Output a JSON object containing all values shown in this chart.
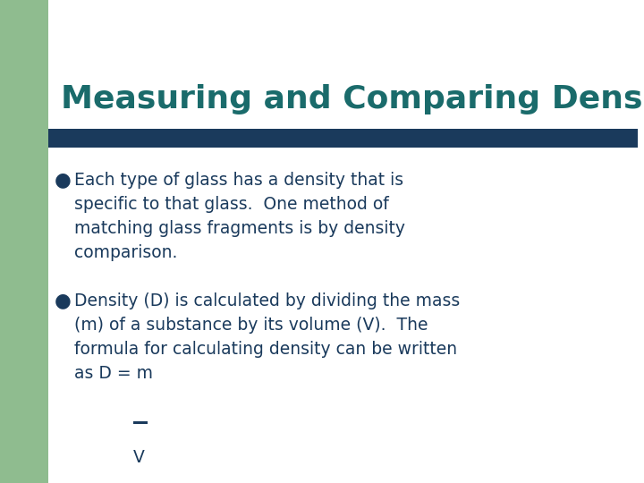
{
  "title": "Measuring and Comparing Density",
  "title_color": "#1a6b6b",
  "title_fontsize": 26,
  "bg_color": "#ffffff",
  "green_color": "#8fbc8f",
  "divider_color": "#1a3a5c",
  "text_color": "#1a3a5c",
  "bullet_fontsize": 13.5,
  "bullet1": "Each type of glass has a density that is\nspecific to that glass.  One method of\nmatching glass fragments is by density\ncomparison.",
  "bullet2": "Density (D) is calculated by dividing the mass\n(m) of a substance by its volume (V).  The\nformula for calculating density can be written\nas D = m",
  "bullet2_v": "     V"
}
